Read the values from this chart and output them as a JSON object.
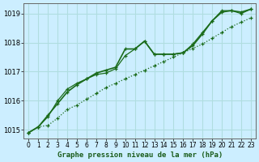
{
  "title": "Graphe pression niveau de la mer (hPa)",
  "bg_color": "#cceeff",
  "grid_color": "#b0dde0",
  "line_color": "#1a6b1a",
  "xlim": [
    -0.5,
    23.5
  ],
  "ylim": [
    1014.7,
    1019.35
  ],
  "yticks": [
    1015,
    1016,
    1017,
    1018,
    1019
  ],
  "xticks": [
    0,
    1,
    2,
    3,
    4,
    5,
    6,
    7,
    8,
    9,
    10,
    11,
    12,
    13,
    14,
    15,
    16,
    17,
    18,
    19,
    20,
    21,
    22,
    23
  ],
  "series": [
    {
      "y": [
        1014.9,
        1015.1,
        1015.15,
        1015.4,
        1015.7,
        1015.85,
        1016.05,
        1016.25,
        1016.45,
        1016.6,
        1016.75,
        1016.9,
        1017.05,
        1017.2,
        1017.35,
        1017.5,
        1017.65,
        1017.8,
        1017.95,
        1018.15,
        1018.35,
        1018.55,
        1018.7,
        1018.85
      ],
      "linestyle": "dotted",
      "linewidth": 0.9,
      "marker": "+"
    },
    {
      "y": [
        1014.9,
        1015.1,
        1015.5,
        1015.9,
        1016.3,
        1016.55,
        1016.75,
        1016.95,
        1017.05,
        1017.15,
        1017.78,
        1017.78,
        1018.05,
        1017.6,
        1017.6,
        1017.6,
        1017.65,
        1017.9,
        1018.3,
        1018.75,
        1019.05,
        1019.1,
        1019.05,
        1019.15
      ],
      "linestyle": "solid",
      "linewidth": 1.2,
      "marker": "+"
    },
    {
      "y": [
        1014.9,
        1015.1,
        1015.45,
        1016.0,
        1016.4,
        1016.6,
        1016.75,
        1016.9,
        1016.95,
        1017.1,
        1017.55,
        1017.78,
        1018.05,
        1017.6,
        1017.6,
        1017.6,
        1017.65,
        1017.95,
        1018.35,
        1018.75,
        1019.1,
        1019.1,
        1019.0,
        1019.15
      ],
      "linestyle": "solid",
      "linewidth": 0.9,
      "marker": "+"
    }
  ]
}
